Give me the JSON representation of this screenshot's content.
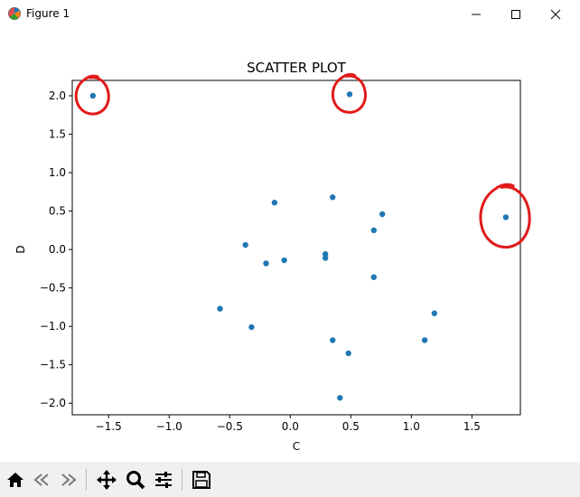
{
  "window": {
    "title": "Figure 1"
  },
  "chart_data": {
    "type": "scatter",
    "title": "SCATTER PLOT",
    "xlabel": "C",
    "ylabel": "D",
    "xlim": [
      -1.8,
      1.9
    ],
    "ylim": [
      -2.15,
      2.2
    ],
    "xticks": [
      -1.5,
      -1.0,
      -0.5,
      0.0,
      0.5,
      1.0,
      1.5
    ],
    "xtick_labels": [
      "−1.5",
      "−1.0",
      "−0.5",
      "0.0",
      "0.5",
      "1.0",
      "1.5"
    ],
    "yticks": [
      2.0,
      1.5,
      1.0,
      0.5,
      0.0,
      -0.5,
      -1.0,
      -1.5,
      -2.0
    ],
    "ytick_labels": [
      "2.0",
      "1.5",
      "1.0",
      "0.5",
      "0.0",
      "−0.5",
      "−1.0",
      "−1.5",
      "−2.0"
    ],
    "color": "#1f77b4",
    "points": [
      {
        "x": -1.63,
        "y": 2.0
      },
      {
        "x": 0.49,
        "y": 2.02
      },
      {
        "x": 1.78,
        "y": 0.42
      },
      {
        "x": -0.13,
        "y": 0.61
      },
      {
        "x": 0.35,
        "y": 0.68
      },
      {
        "x": 0.76,
        "y": 0.46
      },
      {
        "x": 0.69,
        "y": 0.25
      },
      {
        "x": -0.37,
        "y": 0.06
      },
      {
        "x": 0.29,
        "y": -0.06
      },
      {
        "x": 0.29,
        "y": -0.11
      },
      {
        "x": -0.2,
        "y": -0.18
      },
      {
        "x": -0.05,
        "y": -0.14
      },
      {
        "x": 0.69,
        "y": -0.36
      },
      {
        "x": -0.58,
        "y": -0.77
      },
      {
        "x": -0.32,
        "y": -1.01
      },
      {
        "x": 1.19,
        "y": -0.83
      },
      {
        "x": 0.35,
        "y": -1.18
      },
      {
        "x": 1.11,
        "y": -1.18
      },
      {
        "x": 0.48,
        "y": -1.35
      },
      {
        "x": 0.41,
        "y": -1.93
      }
    ],
    "annotations": {
      "type": "hand-drawn red circles",
      "color": "#e21a1a",
      "circled_points": [
        {
          "x": -1.63,
          "y": 2.0
        },
        {
          "x": 0.49,
          "y": 2.02
        },
        {
          "x": 1.78,
          "y": 0.42
        }
      ]
    }
  },
  "toolbar": {
    "items": [
      "home-icon",
      "back-icon",
      "forward-icon",
      "pan-icon",
      "zoom-icon",
      "configure-subplots-icon",
      "save-icon"
    ]
  }
}
